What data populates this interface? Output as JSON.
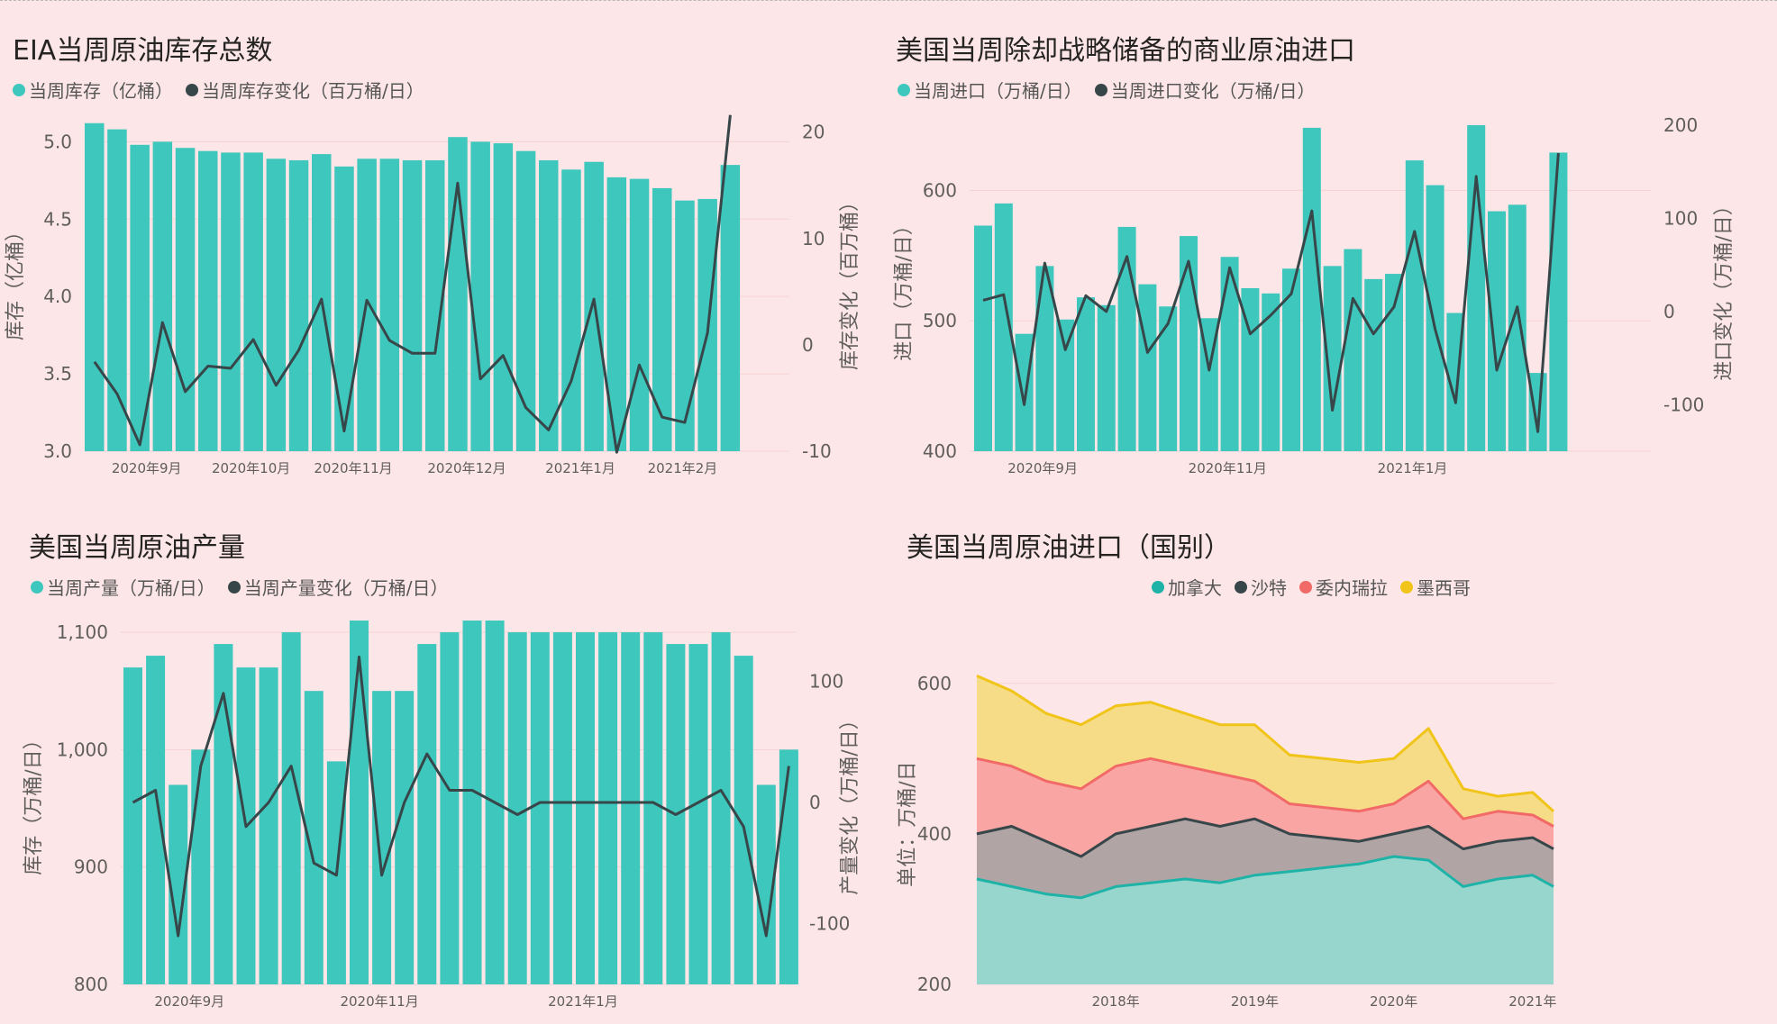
{
  "colors": {
    "bar": "#3ec7bc",
    "line": "#374649",
    "canada": "#1fb3a8",
    "saudi": "#374649",
    "venezuela": "#f26a67",
    "mexico": "#f0c419",
    "background": "#fde6e7"
  },
  "panels": {
    "inventory": {
      "title": "EIA当周原油库存总数",
      "legend": [
        "当周库存（亿桶）",
        "当周库存变化（百万桶/日）"
      ],
      "y_left_label": "库存（亿桶）",
      "y_right_label": "库存变化（百万桶）"
    },
    "imports": {
      "title": "美国当周除却战略储备的商业原油进口",
      "legend": [
        "当周进口（万桶/日）",
        "当周进口变化（万桶/日）"
      ],
      "y_left_label": "进口（万桶/日）",
      "y_right_label": "进口变化（万桶/日）"
    },
    "production": {
      "title": "美国当周原油产量",
      "legend": [
        "当周产量（万桶/日）",
        "当周产量变化（万桶/日）"
      ],
      "y_left_label": "库存（万桶/日）",
      "y_right_label": "产量变化（万桶/日）"
    },
    "by_country": {
      "title": "美国当周原油进口（国别）",
      "legend": [
        "加拿大",
        "沙特",
        "委内瑞拉",
        "墨西哥"
      ],
      "y_left_label": "单位：万桶/日"
    }
  },
  "chart_data": [
    {
      "id": "inventory",
      "type": "bar+line",
      "title": "EIA当周原油库存总数",
      "y_left": {
        "label": "库存（亿桶）",
        "range": [
          3.0,
          5.2
        ],
        "ticks": [
          3.0,
          3.5,
          4.0,
          4.5,
          5.0
        ],
        "tick_labels": [
          "3.0",
          "3.5",
          "4.0",
          "4.5",
          "5.0"
        ]
      },
      "y_right": {
        "label": "库存变化（百万桶）",
        "range": [
          -10,
          22
        ],
        "ticks": [
          -10,
          0,
          10,
          20
        ],
        "tick_labels": [
          "-10",
          "0",
          "10",
          "20"
        ]
      },
      "x_labels": [
        {
          "i": 2.3,
          "text": "2020年9月"
        },
        {
          "i": 6.9,
          "text": "2020年10月"
        },
        {
          "i": 11.4,
          "text": "2020年11月"
        },
        {
          "i": 16.4,
          "text": "2020年12月"
        },
        {
          "i": 21.4,
          "text": "2021年1月"
        },
        {
          "i": 25.9,
          "text": "2021年2月"
        }
      ],
      "series": [
        {
          "name": "当周库存（亿桶）",
          "kind": "bar",
          "values": [
            5.12,
            5.08,
            4.98,
            5.0,
            4.96,
            4.94,
            4.93,
            4.93,
            4.89,
            4.88,
            4.92,
            4.84,
            4.89,
            4.89,
            4.88,
            4.88,
            5.03,
            5.0,
            4.99,
            4.94,
            4.88,
            4.82,
            4.87,
            4.77,
            4.76,
            4.7,
            4.62,
            4.63,
            4.85
          ]
        },
        {
          "name": "当周库存变化（百万桶/日）",
          "kind": "line",
          "values": [
            -1.6,
            -4.6,
            -9.4,
            2.1,
            -4.4,
            -2.0,
            -2.2,
            0.5,
            -3.8,
            -0.5,
            4.3,
            -8.1,
            4.2,
            0.4,
            -0.8,
            -0.8,
            15.2,
            -3.2,
            -1.0,
            -5.9,
            -8.0,
            -3.4,
            4.3,
            -10.1,
            -1.9,
            -6.8,
            -7.3,
            1.1,
            21.6
          ]
        }
      ]
    },
    {
      "id": "imports",
      "type": "bar+line",
      "title": "美国当周除却战略储备的商业原油进口",
      "y_left": {
        "label": "进口（万桶/日）",
        "range": [
          400,
          650
        ],
        "ticks": [
          400,
          500,
          600
        ],
        "tick_labels": [
          "400",
          "500",
          "600"
        ]
      },
      "y_right": {
        "label": "进口变化（万桶/日）",
        "range": [
          -150,
          200
        ],
        "ticks": [
          -100,
          0,
          100,
          200
        ],
        "tick_labels": [
          "-100",
          "0",
          "100",
          "200"
        ]
      },
      "x_labels": [
        {
          "i": 2.9,
          "text": "2020年9月"
        },
        {
          "i": 11.9,
          "text": "2020年11月"
        },
        {
          "i": 20.9,
          "text": "2021年1月"
        }
      ],
      "series": [
        {
          "name": "当周进口（万桶/日）",
          "kind": "bar",
          "values": [
            573,
            590,
            490,
            542,
            501,
            518,
            512,
            572,
            528,
            511,
            565,
            502,
            549,
            525,
            521,
            540,
            648,
            542,
            555,
            532,
            536,
            623,
            604,
            506,
            652,
            584,
            589,
            460,
            629
          ]
        },
        {
          "name": "当周进口变化（万桶/日）",
          "kind": "line",
          "values": [
            12,
            18,
            -100,
            52,
            -41,
            17,
            0,
            59,
            -44,
            -13,
            54,
            -63,
            47,
            -24,
            -4,
            19,
            108,
            -106,
            14,
            -24,
            5,
            86,
            -19,
            -98,
            145,
            -63,
            5,
            -129,
            170
          ]
        }
      ]
    },
    {
      "id": "production",
      "type": "bar+line",
      "title": "美国当周原油产量",
      "y_left": {
        "label": "库存（万桶/日）",
        "range": [
          800,
          1110
        ],
        "ticks": [
          800,
          900,
          1000,
          1100
        ],
        "tick_labels": [
          "800",
          "900",
          "1,000",
          "1,100"
        ]
      },
      "y_right": {
        "label": "产量变化（万桶/日）",
        "range": [
          -150,
          150
        ],
        "ticks": [
          -100,
          0,
          100
        ],
        "tick_labels": [
          "-100",
          "0",
          "100"
        ]
      },
      "x_labels": [
        {
          "i": 2.5,
          "text": "2020年9月"
        },
        {
          "i": 10.9,
          "text": "2020年11月"
        },
        {
          "i": 19.9,
          "text": "2021年1月"
        }
      ],
      "series": [
        {
          "name": "当周产量（万桶/日）",
          "kind": "bar",
          "values": [
            1070,
            1080,
            970,
            1000,
            1090,
            1070,
            1070,
            1100,
            1050,
            990,
            1110,
            1050,
            1050,
            1090,
            1100,
            1110,
            1110,
            1100,
            1100,
            1100,
            1100,
            1100,
            1100,
            1100,
            1090,
            1090,
            1100,
            1080,
            970,
            1000
          ]
        },
        {
          "name": "当周产量变化（万桶/日）",
          "kind": "line",
          "values": [
            0,
            10,
            -110,
            30,
            90,
            -20,
            0,
            30,
            -50,
            -60,
            120,
            -60,
            0,
            40,
            10,
            10,
            0,
            -10,
            0,
            0,
            0,
            0,
            0,
            0,
            -10,
            0,
            10,
            -20,
            -110,
            30
          ]
        }
      ]
    },
    {
      "id": "by_country",
      "type": "area",
      "title": "美国当周原油进口（国别）",
      "y_left": {
        "label": "单位：万桶/日",
        "range": [
          200,
          650
        ],
        "ticks": [
          200,
          400,
          600
        ],
        "tick_labels": [
          "200",
          "400",
          "600"
        ]
      },
      "x_range": [
        2017.0,
        2021.15
      ],
      "x_ticks": [
        {
          "x": 2018.0,
          "text": "2018年"
        },
        {
          "x": 2019.0,
          "text": "2019年"
        },
        {
          "x": 2020.0,
          "text": "2020年"
        },
        {
          "x": 2021.0,
          "text": "2021年"
        }
      ],
      "stacking": "cumulative",
      "series": [
        {
          "name": "加拿大",
          "key": "canada",
          "points": [
            [
              2017.0,
              340
            ],
            [
              2017.25,
              330
            ],
            [
              2017.5,
              320
            ],
            [
              2017.75,
              315
            ],
            [
              2018.0,
              330
            ],
            [
              2018.25,
              335
            ],
            [
              2018.5,
              340
            ],
            [
              2018.75,
              335
            ],
            [
              2019.0,
              345
            ],
            [
              2019.25,
              350
            ],
            [
              2019.5,
              355
            ],
            [
              2019.75,
              360
            ],
            [
              2020.0,
              370
            ],
            [
              2020.25,
              365
            ],
            [
              2020.5,
              330
            ],
            [
              2020.75,
              340
            ],
            [
              2021.0,
              345
            ],
            [
              2021.15,
              330
            ]
          ]
        },
        {
          "name": "沙特",
          "key": "saudi",
          "points": [
            [
              2017.0,
              400
            ],
            [
              2017.25,
              410
            ],
            [
              2017.5,
              390
            ],
            [
              2017.75,
              370
            ],
            [
              2018.0,
              400
            ],
            [
              2018.25,
              410
            ],
            [
              2018.5,
              420
            ],
            [
              2018.75,
              410
            ],
            [
              2019.0,
              420
            ],
            [
              2019.25,
              400
            ],
            [
              2019.5,
              395
            ],
            [
              2019.75,
              390
            ],
            [
              2020.0,
              400
            ],
            [
              2020.25,
              410
            ],
            [
              2020.5,
              380
            ],
            [
              2020.75,
              390
            ],
            [
              2021.0,
              395
            ],
            [
              2021.15,
              380
            ]
          ]
        },
        {
          "name": "委内瑞拉",
          "key": "venezuela",
          "points": [
            [
              2017.0,
              500
            ],
            [
              2017.25,
              490
            ],
            [
              2017.5,
              470
            ],
            [
              2017.75,
              460
            ],
            [
              2018.0,
              490
            ],
            [
              2018.25,
              500
            ],
            [
              2018.5,
              490
            ],
            [
              2018.75,
              480
            ],
            [
              2019.0,
              470
            ],
            [
              2019.25,
              440
            ],
            [
              2019.5,
              435
            ],
            [
              2019.75,
              430
            ],
            [
              2020.0,
              440
            ],
            [
              2020.25,
              470
            ],
            [
              2020.5,
              420
            ],
            [
              2020.75,
              430
            ],
            [
              2021.0,
              425
            ],
            [
              2021.15,
              410
            ]
          ]
        },
        {
          "name": "墨西哥",
          "key": "mexico",
          "points": [
            [
              2017.0,
              610
            ],
            [
              2017.25,
              590
            ],
            [
              2017.5,
              560
            ],
            [
              2017.75,
              545
            ],
            [
              2018.0,
              570
            ],
            [
              2018.25,
              575
            ],
            [
              2018.5,
              560
            ],
            [
              2018.75,
              545
            ],
            [
              2019.0,
              545
            ],
            [
              2019.25,
              505
            ],
            [
              2019.5,
              500
            ],
            [
              2019.75,
              495
            ],
            [
              2020.0,
              500
            ],
            [
              2020.25,
              540
            ],
            [
              2020.5,
              460
            ],
            [
              2020.75,
              450
            ],
            [
              2021.0,
              455
            ],
            [
              2021.15,
              430
            ]
          ]
        }
      ]
    }
  ]
}
